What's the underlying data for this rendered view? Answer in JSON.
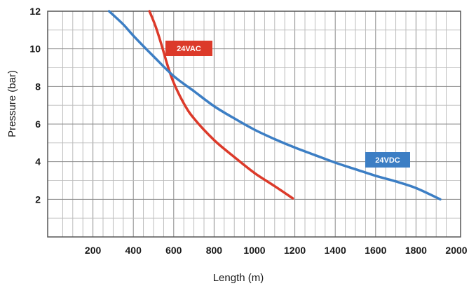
{
  "chart_data": {
    "type": "line",
    "xlabel": "Length (m)",
    "ylabel": "Pressure (bar)",
    "xlim": [
      0,
      2000
    ],
    "ylim": [
      0,
      12
    ],
    "x_ticks": [
      200,
      400,
      600,
      800,
      1000,
      1200,
      1400,
      1600,
      1800,
      2000
    ],
    "y_ticks": [
      2,
      4,
      6,
      8,
      10,
      12
    ],
    "grid": true,
    "series": [
      {
        "name": "24VAC",
        "color": "#dc3a2a",
        "points": [
          [
            480,
            12.0
          ],
          [
            510,
            11.2
          ],
          [
            540,
            10.2
          ],
          [
            570,
            9.1
          ],
          [
            600,
            8.2
          ],
          [
            650,
            7.1
          ],
          [
            700,
            6.3
          ],
          [
            800,
            5.15
          ],
          [
            900,
            4.25
          ],
          [
            1000,
            3.4
          ],
          [
            1100,
            2.7
          ],
          [
            1190,
            2.05
          ]
        ]
      },
      {
        "name": "24VDC",
        "color": "#3c7ec4",
        "points": [
          [
            280,
            12.0
          ],
          [
            350,
            11.3
          ],
          [
            400,
            10.7
          ],
          [
            500,
            9.6
          ],
          [
            600,
            8.55
          ],
          [
            700,
            7.75
          ],
          [
            800,
            6.95
          ],
          [
            900,
            6.3
          ],
          [
            1000,
            5.7
          ],
          [
            1100,
            5.2
          ],
          [
            1200,
            4.75
          ],
          [
            1300,
            4.35
          ],
          [
            1400,
            3.95
          ],
          [
            1500,
            3.6
          ],
          [
            1600,
            3.25
          ],
          [
            1700,
            2.95
          ],
          [
            1800,
            2.6
          ],
          [
            1920,
            2.0
          ]
        ]
      }
    ]
  }
}
